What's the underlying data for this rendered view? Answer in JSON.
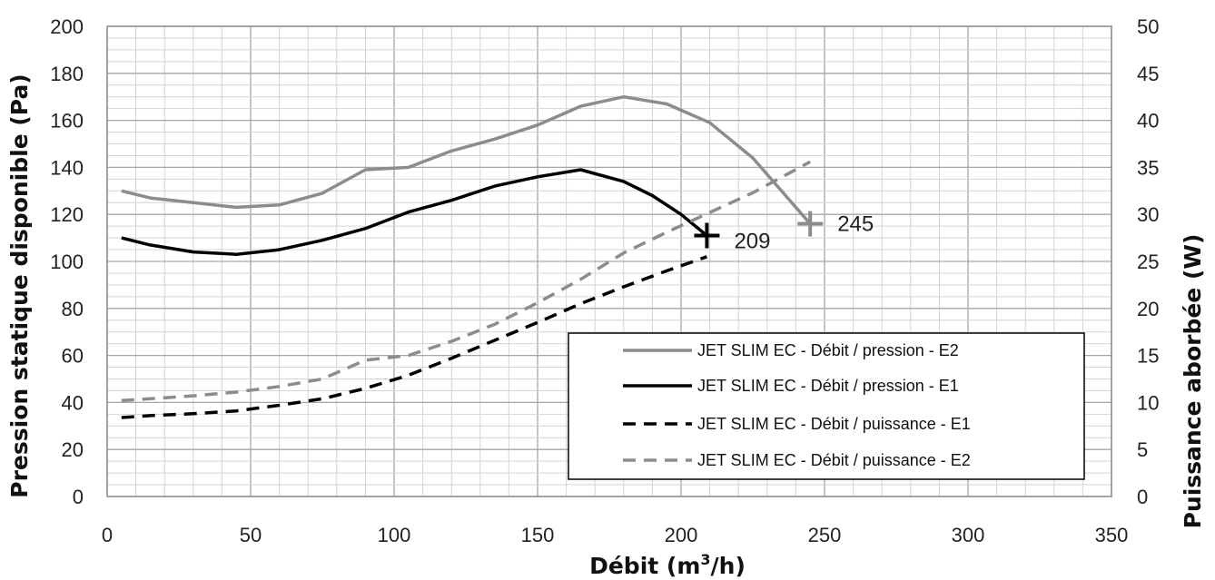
{
  "chart_data": {
    "type": "line",
    "xlabel_prefix": "Débit (m",
    "xlabel_sup": "3",
    "xlabel_suffix": "/h)",
    "ylabel": "Pression statique disponible (Pa)",
    "y2label": "Puissance aborbée (W)",
    "xlim": [
      0,
      350
    ],
    "ylim": [
      0,
      200
    ],
    "y2lim": [
      0,
      50
    ],
    "xticks": [
      0,
      50,
      100,
      150,
      200,
      250,
      300,
      350
    ],
    "yticks": [
      0,
      20,
      40,
      60,
      80,
      100,
      120,
      140,
      160,
      180,
      200
    ],
    "y2ticks": [
      0,
      5,
      10,
      15,
      20,
      25,
      30,
      35,
      40,
      45,
      50
    ],
    "grid": true,
    "legend_position": "bottom-right",
    "series": [
      {
        "name": "JET SLIM EC  - Débit / pression  - E2",
        "axis": "left",
        "color": "#8c8c8c",
        "style": "solid",
        "points": [
          [
            5,
            130
          ],
          [
            15,
            127
          ],
          [
            30,
            125
          ],
          [
            45,
            123
          ],
          [
            60,
            124
          ],
          [
            75,
            129
          ],
          [
            90,
            139
          ],
          [
            105,
            140
          ],
          [
            120,
            147
          ],
          [
            135,
            152
          ],
          [
            150,
            158
          ],
          [
            165,
            166
          ],
          [
            180,
            170
          ],
          [
            195,
            167
          ],
          [
            210,
            159
          ],
          [
            225,
            144
          ],
          [
            245,
            116
          ]
        ]
      },
      {
        "name": "JET SLIM EC  - Débit / pression  - E1",
        "axis": "left",
        "color": "#000000",
        "style": "solid",
        "points": [
          [
            5,
            110
          ],
          [
            15,
            107
          ],
          [
            30,
            104
          ],
          [
            45,
            103
          ],
          [
            60,
            105
          ],
          [
            75,
            109
          ],
          [
            90,
            114
          ],
          [
            105,
            121
          ],
          [
            120,
            126
          ],
          [
            135,
            132
          ],
          [
            150,
            136
          ],
          [
            165,
            139
          ],
          [
            180,
            134
          ],
          [
            190,
            128
          ],
          [
            200,
            120
          ],
          [
            209,
            111
          ]
        ]
      },
      {
        "name": "JET SLIM EC  - Débit / puissance  - E1",
        "axis": "right",
        "color": "#000000",
        "style": "dashed",
        "points": [
          [
            5,
            8.4
          ],
          [
            15,
            8.6
          ],
          [
            30,
            8.8
          ],
          [
            45,
            9.1
          ],
          [
            60,
            9.7
          ],
          [
            75,
            10.4
          ],
          [
            90,
            11.5
          ],
          [
            105,
            12.9
          ],
          [
            120,
            14.7
          ],
          [
            135,
            16.6
          ],
          [
            150,
            18.5
          ],
          [
            165,
            20.5
          ],
          [
            180,
            22.3
          ],
          [
            195,
            24
          ],
          [
            209,
            25.5
          ]
        ]
      },
      {
        "name": "JET SLIM EC  - Débit / puissance  - E2",
        "axis": "right",
        "color": "#8c8c8c",
        "style": "dashed",
        "points": [
          [
            5,
            10.2
          ],
          [
            15,
            10.4
          ],
          [
            30,
            10.7
          ],
          [
            45,
            11.1
          ],
          [
            60,
            11.7
          ],
          [
            75,
            12.5
          ],
          [
            90,
            14.5
          ],
          [
            105,
            15
          ],
          [
            120,
            16.5
          ],
          [
            135,
            18.3
          ],
          [
            150,
            20.6
          ],
          [
            165,
            23.1
          ],
          [
            180,
            25.9
          ],
          [
            195,
            28.1
          ],
          [
            210,
            30.2
          ],
          [
            225,
            32.3
          ],
          [
            245,
            35.6
          ]
        ]
      }
    ],
    "markers": [
      {
        "x": 209,
        "y": 111,
        "label": "209",
        "color": "#000000"
      },
      {
        "x": 245,
        "y": 116,
        "label": "245",
        "color": "#8c8c8c"
      }
    ]
  }
}
